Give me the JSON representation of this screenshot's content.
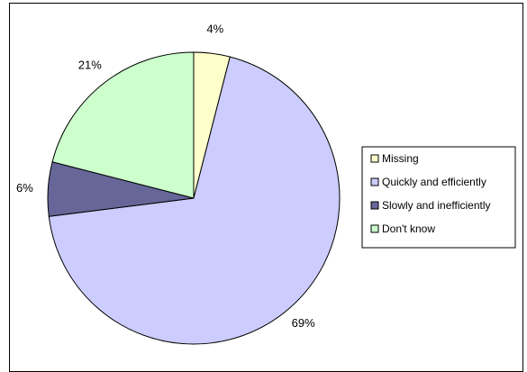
{
  "chart_data": {
    "type": "pie",
    "title": "",
    "slices": [
      {
        "label": "Missing",
        "value": 4,
        "label_text": "4%",
        "color": "#FFFFCC"
      },
      {
        "label": "Quickly and efficiently",
        "value": 69,
        "label_text": "69%",
        "color": "#CCCCFF"
      },
      {
        "label": "Slowly and inefficiently",
        "value": 6,
        "label_text": "6%",
        "color": "#666699"
      },
      {
        "label": "Don't know",
        "value": 21,
        "label_text": "21%",
        "color": "#CCFFCC"
      }
    ],
    "legend": {
      "placement": "right",
      "entries": [
        "Missing",
        "Quickly and efficiently",
        "Slowly and inefficiently",
        "Don't know"
      ]
    },
    "start_angle_deg": 0,
    "direction": "clockwise"
  }
}
